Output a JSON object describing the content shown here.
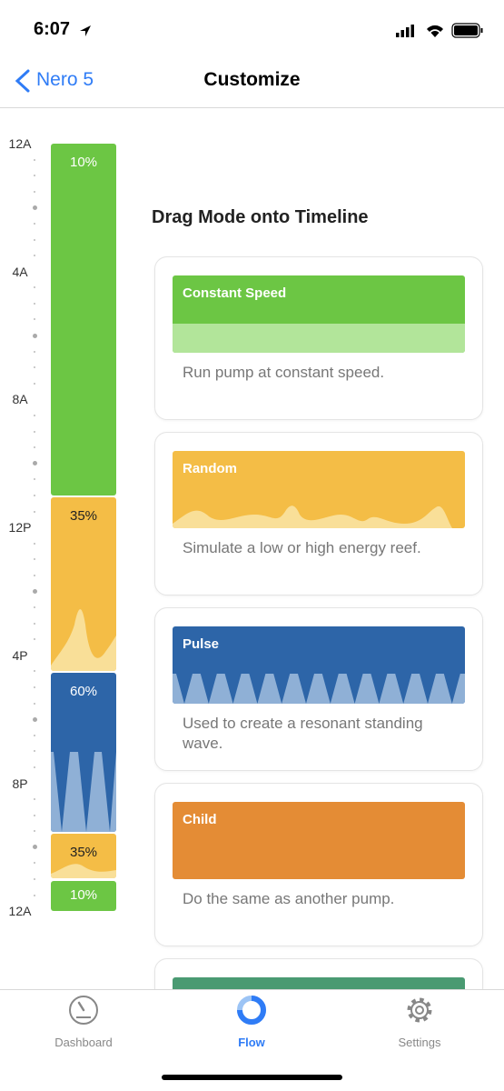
{
  "status_bar": {
    "time": "6:07"
  },
  "nav": {
    "back": "Nero 5",
    "title": "Customize"
  },
  "timeline": {
    "hours": [
      "12A",
      "4A",
      "8A",
      "12P",
      "4P",
      "8P",
      "12A"
    ],
    "segments": [
      {
        "label": "10%"
      },
      {
        "label": "35%"
      },
      {
        "label": "60%"
      },
      {
        "label": "35%"
      },
      {
        "label": "10%"
      }
    ]
  },
  "heading": "Drag Mode onto Timeline",
  "modes": [
    {
      "name": "Constant Speed",
      "description": "Run pump at constant speed."
    },
    {
      "name": "Random",
      "description": "Simulate a low or high energy reef."
    },
    {
      "name": "Pulse",
      "description": "Used to create a resonant standing wave."
    },
    {
      "name": "Child",
      "description": "Do the same as another pump."
    }
  ],
  "tabs": [
    {
      "label": "Dashboard"
    },
    {
      "label": "Flow"
    },
    {
      "label": "Settings"
    }
  ]
}
